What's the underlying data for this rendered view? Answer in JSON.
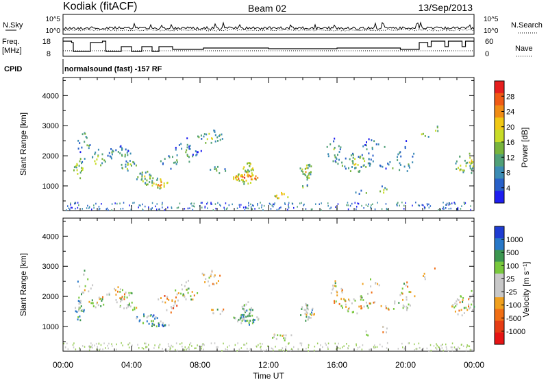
{
  "header": {
    "radar": "Kodiak (fitACF)",
    "beam": "Beam 02",
    "date": "13/Sep/2013"
  },
  "noise_panel": {
    "left_label": "N.Sky",
    "right_label": "N.Search",
    "left_ticks": [
      "10^5",
      "10^0"
    ],
    "right_ticks": [
      "10^5",
      "10^0"
    ]
  },
  "freq_panel": {
    "left_label_1": "Freq.",
    "left_label_2": "[MHz]",
    "right_label": "Nave",
    "left_ticks": [
      "18",
      "8"
    ],
    "right_ticks": [
      "60",
      "0"
    ]
  },
  "cpid": {
    "label": "CPID",
    "text": "normalsound (fast) -157 RF"
  },
  "colors": {
    "power_scale": [
      "#1e1ef0",
      "#2860c8",
      "#3c8cb4",
      "#50a078",
      "#78b43c",
      "#c8dc28",
      "#f0c814",
      "#f08c14",
      "#f05a14",
      "#e61e1e"
    ],
    "velocity_scale": [
      "#1e3cd2",
      "#2878c8",
      "#3c9650",
      "#78c83c",
      "#c8c8c8",
      "#c8c8c8",
      "#f0a01e",
      "#f06e14",
      "#e63c14",
      "#e61414"
    ]
  },
  "chart_data": [
    {
      "type": "heatmap",
      "name": "power",
      "ylabel": "Slant Range [km]",
      "yticks": [
        1000,
        2000,
        3000,
        4000
      ],
      "ylim": [
        180,
        4600
      ],
      "xlim": [
        0,
        24
      ],
      "colorbar": {
        "label": "Power [dB]",
        "ticks": [
          "4",
          "8",
          "12",
          "16",
          "20",
          "24",
          "28"
        ],
        "range": [
          0,
          30
        ]
      }
    },
    {
      "type": "heatmap",
      "name": "velocity",
      "ylabel": "Slant Range [km]",
      "yticks": [
        1000,
        2000,
        3000,
        4000
      ],
      "ylim": [
        180,
        4600
      ],
      "xlim": [
        0,
        24
      ],
      "colorbar": {
        "label": "Velocity [m s⁻¹]",
        "ticks": [
          "1000",
          "500",
          "100",
          "25",
          "-25",
          "-100",
          "-500",
          "-1000"
        ]
      }
    }
  ],
  "x_axis": {
    "ticks": [
      "00:00",
      "04:00",
      "08:00",
      "12:00",
      "16:00",
      "20:00",
      "00:00"
    ],
    "label": "Time UT"
  }
}
